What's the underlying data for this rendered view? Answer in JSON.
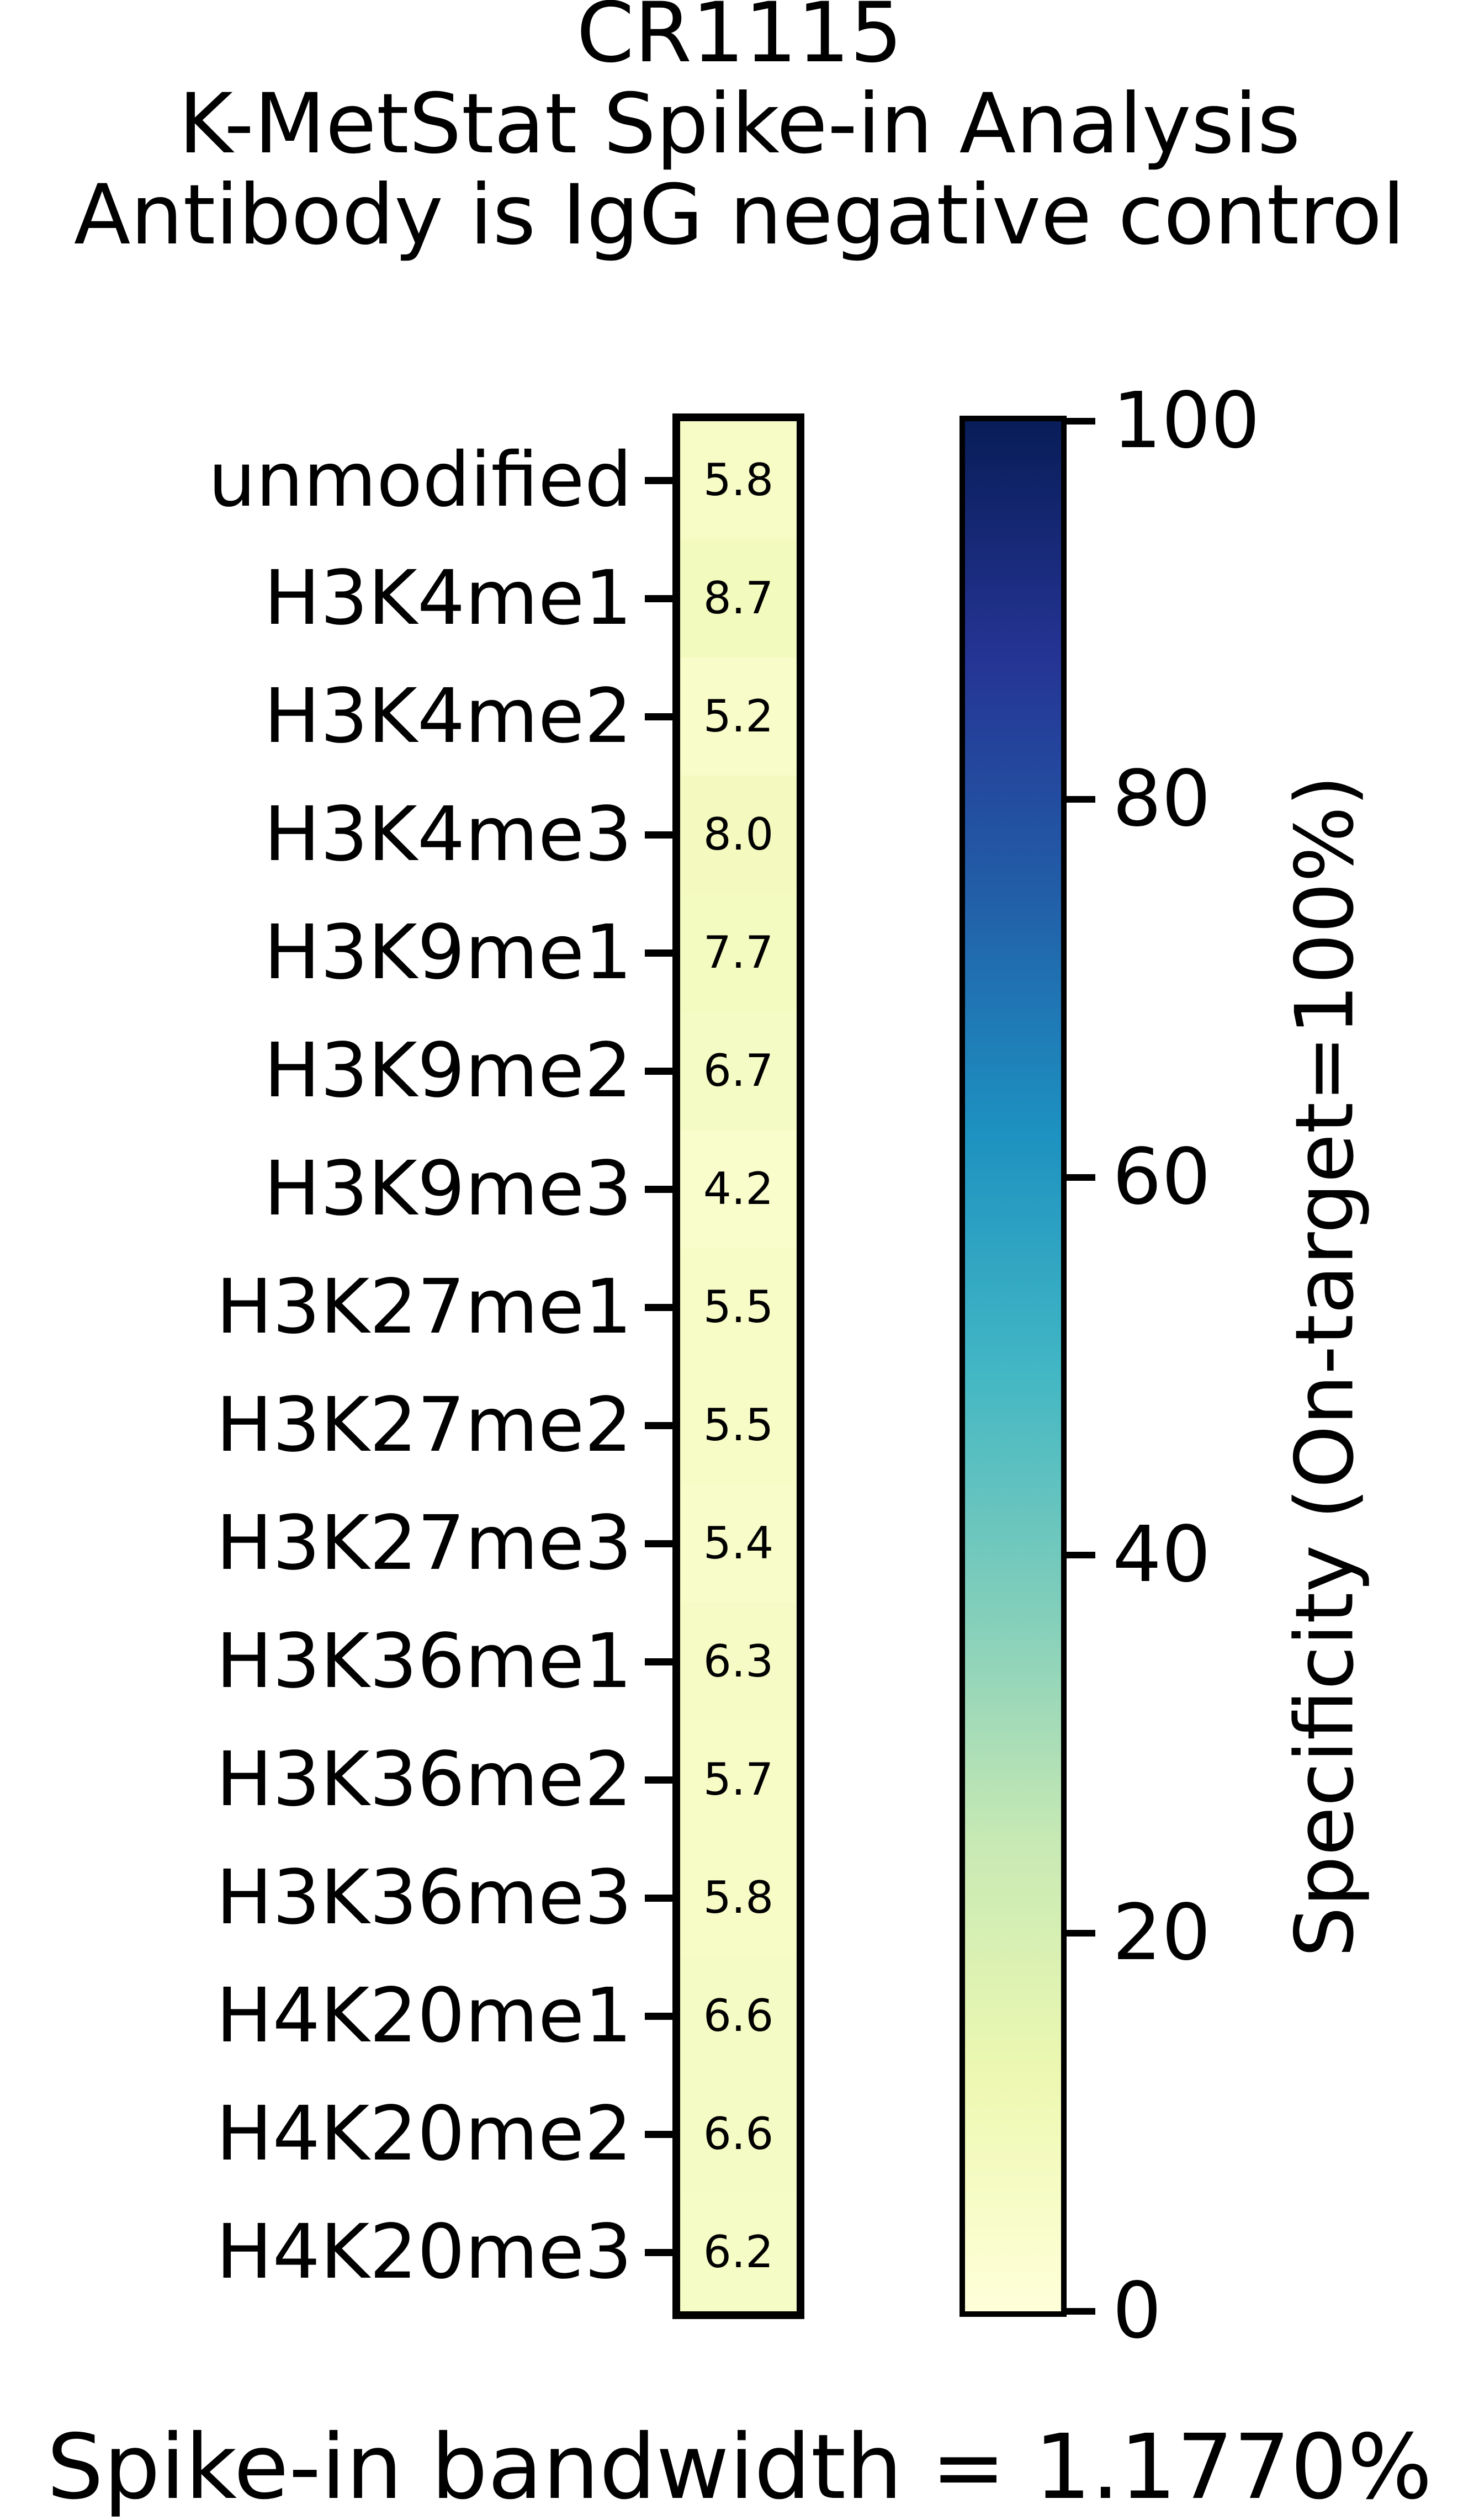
{
  "title": {
    "line1": "CR1115",
    "line2": "K-MetStat Spike-in Analysis",
    "line3": "Antibody is IgG negative control"
  },
  "footer": {
    "text": "Spike-in bandwidth = 1.1770%"
  },
  "chart_data": {
    "type": "heatmap",
    "title": "CR1115\nK-MetStat Spike-in Analysis\nAntibody is IgG negative control",
    "rows": [
      "unmodified",
      "H3K4me1",
      "H3K4me2",
      "H3K4me3",
      "H3K9me1",
      "H3K9me2",
      "H3K9me3",
      "H3K27me1",
      "H3K27me2",
      "H3K27me3",
      "H3K36me1",
      "H3K36me2",
      "H3K36me3",
      "H4K20me1",
      "H4K20me2",
      "H4K20me3"
    ],
    "values": [
      5.8,
      8.7,
      5.2,
      8.0,
      7.7,
      6.7,
      4.2,
      5.5,
      5.5,
      5.4,
      6.3,
      5.7,
      5.8,
      6.6,
      6.6,
      6.2
    ],
    "value_labels": [
      "5.8",
      "8.7",
      "5.2",
      "8.0",
      "7.7",
      "6.7",
      "4.2",
      "5.5",
      "5.5",
      "5.4",
      "6.3",
      "5.7",
      "5.8",
      "6.6",
      "6.6",
      "6.2"
    ],
    "cell_colors": [
      "#f7fcc6",
      "#f3fabd",
      "#f8fcc8",
      "#f4fabf",
      "#f4fbc0",
      "#f5fbc4",
      "#f9fdcc",
      "#f7fcc7",
      "#f7fcc7",
      "#f7fcc8",
      "#f6fbc5",
      "#f7fcc7",
      "#f7fcc6",
      "#f5fbc4",
      "#f5fbc4",
      "#f6fcc5"
    ],
    "annotation": "Spike-in bandwidth = 1.1770%",
    "grid": false,
    "colorbar": {
      "label": "Specificity (On-target=100%)",
      "tick_labels": [
        "100",
        "80",
        "60",
        "40",
        "20",
        "0"
      ],
      "tick_values": [
        100,
        80,
        60,
        40,
        20,
        0
      ],
      "range": [
        0,
        100
      ],
      "colormap": "YlGnBu",
      "gradient_stops": [
        {
          "pos": 0.0,
          "color": "#ffffd9"
        },
        {
          "pos": 0.125,
          "color": "#edf8b1"
        },
        {
          "pos": 0.25,
          "color": "#c7e9b4"
        },
        {
          "pos": 0.375,
          "color": "#7fcdbb"
        },
        {
          "pos": 0.5,
          "color": "#41b6c4"
        },
        {
          "pos": 0.625,
          "color": "#1d91c0"
        },
        {
          "pos": 0.75,
          "color": "#225ea8"
        },
        {
          "pos": 0.875,
          "color": "#253494"
        },
        {
          "pos": 1.0,
          "color": "#081d58"
        }
      ]
    },
    "text_color": "#000000",
    "background_color": "#ffffff"
  }
}
